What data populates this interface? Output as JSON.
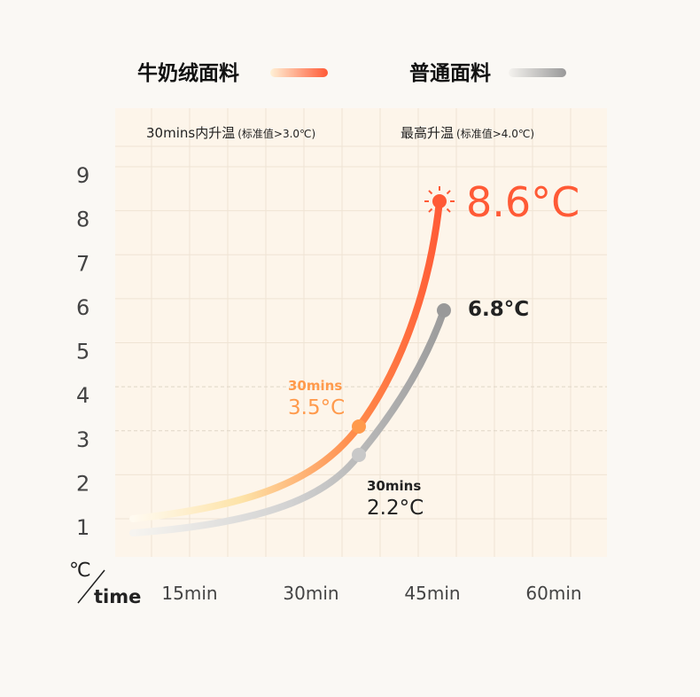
{
  "chart_data": {
    "type": "line",
    "legend": [
      {
        "name": "牛奶绒面料",
        "color_from": "#fde3b0",
        "color_to": "#ff5a36"
      },
      {
        "name": "普通面料",
        "color_from": "#f2f0ec",
        "color_to": "#999999"
      }
    ],
    "legend_placement": "top",
    "header_labels": {
      "left_main": "30mins内升温",
      "left_note": "(标准值>3.0℃)",
      "right_main": "最高升温",
      "right_note": "(标准值>4.0℃)"
    },
    "y_ticks": [
      "1",
      "2",
      "3",
      "4",
      "5",
      "6",
      "7",
      "8",
      "9"
    ],
    "ylim": [
      1,
      9
    ],
    "x_ticks": [
      "15min",
      "30min",
      "45min",
      "60min"
    ],
    "axis_unit_y": "℃",
    "axis_unit_x": "time",
    "grid": true,
    "reference_lines": [
      3.0,
      4.0
    ],
    "series": [
      {
        "name": "牛奶绒面料",
        "points": [
          {
            "label": "30mins",
            "value": 3.5,
            "text": "3.5°C"
          },
          {
            "label": "max",
            "value": 8.6,
            "text": "8.6°C"
          }
        ]
      },
      {
        "name": "普通面料",
        "points": [
          {
            "label": "30mins",
            "value": 2.2,
            "text": "2.2°C"
          },
          {
            "label": "max",
            "value": 6.8,
            "text": "6.8°C"
          }
        ]
      }
    ],
    "annotation_30mins": "30mins",
    "colors": {
      "accent": "#ff5a36",
      "accent_light": "#ff9a4c",
      "gray": "#9a9a9a",
      "plot_bg": "#fdf5ea",
      "page_bg": "#faf8f4"
    }
  }
}
